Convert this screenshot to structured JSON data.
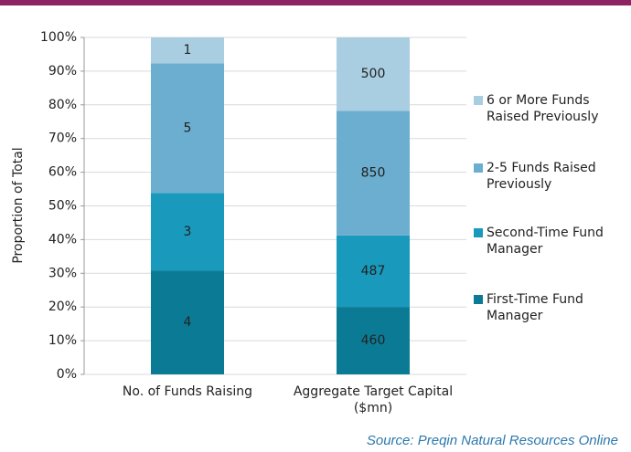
{
  "chart_data": {
    "type": "bar",
    "stacking": "percent",
    "y_label": "Proportion of Total",
    "source": "Source: Preqin Natural Resources Online",
    "categories": [
      "No. of Funds Raising",
      "Aggregate Target Capital ($mn)"
    ],
    "series": [
      {
        "name": "First-Time Fund Manager",
        "color": "#0b7b95",
        "values": [
          4,
          460
        ]
      },
      {
        "name": "Second-Time Fund Manager",
        "color": "#1999bc",
        "values": [
          3,
          487
        ]
      },
      {
        "name": "2-5 Funds Raised Previously",
        "color": "#6caed0",
        "values": [
          5,
          850
        ]
      },
      {
        "name": "6 or More Funds Raised Previously",
        "color": "#a9cde1",
        "values": [
          1,
          500
        ]
      }
    ],
    "ylim": [
      0,
      100
    ],
    "yticks": [
      {
        "value": 0,
        "label": "0%"
      },
      {
        "value": 10,
        "label": "10%"
      },
      {
        "value": 20,
        "label": "20%"
      },
      {
        "value": 30,
        "label": "30%"
      },
      {
        "value": 40,
        "label": "40%"
      },
      {
        "value": 50,
        "label": "50%"
      },
      {
        "value": 60,
        "label": "60%"
      },
      {
        "value": 70,
        "label": "70%"
      },
      {
        "value": 80,
        "label": "80%"
      },
      {
        "value": 90,
        "label": "90%"
      },
      {
        "value": 100,
        "label": "100%"
      }
    ],
    "grid": true,
    "legend": "right"
  }
}
